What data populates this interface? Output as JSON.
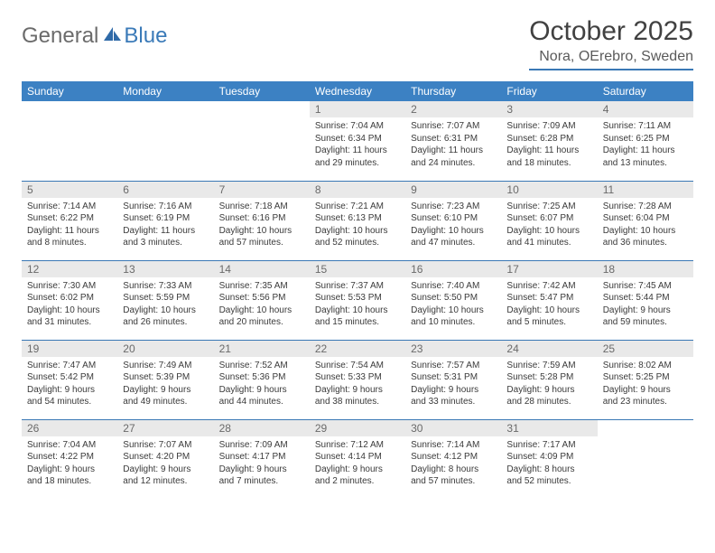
{
  "logo": {
    "general": "General",
    "blue": "Blue"
  },
  "title": "October 2025",
  "location": "Nora, OErebro, Sweden",
  "colors": {
    "header_bg": "#3c81c3",
    "header_text": "#ffffff",
    "rule": "#3a78b5",
    "daynum_bg": "#e9e9e9",
    "daynum_text": "#6a6a6a",
    "body_text": "#3a3a3a",
    "logo_gray": "#6b6b6b",
    "logo_blue": "#3a7ab8"
  },
  "weekdays": [
    "Sunday",
    "Monday",
    "Tuesday",
    "Wednesday",
    "Thursday",
    "Friday",
    "Saturday"
  ],
  "cells": [
    {
      "n": "",
      "sr": "",
      "ss": "",
      "dl": ""
    },
    {
      "n": "",
      "sr": "",
      "ss": "",
      "dl": ""
    },
    {
      "n": "",
      "sr": "",
      "ss": "",
      "dl": ""
    },
    {
      "n": "1",
      "sr": "Sunrise: 7:04 AM",
      "ss": "Sunset: 6:34 PM",
      "dl": "Daylight: 11 hours and 29 minutes."
    },
    {
      "n": "2",
      "sr": "Sunrise: 7:07 AM",
      "ss": "Sunset: 6:31 PM",
      "dl": "Daylight: 11 hours and 24 minutes."
    },
    {
      "n": "3",
      "sr": "Sunrise: 7:09 AM",
      "ss": "Sunset: 6:28 PM",
      "dl": "Daylight: 11 hours and 18 minutes."
    },
    {
      "n": "4",
      "sr": "Sunrise: 7:11 AM",
      "ss": "Sunset: 6:25 PM",
      "dl": "Daylight: 11 hours and 13 minutes."
    },
    {
      "n": "5",
      "sr": "Sunrise: 7:14 AM",
      "ss": "Sunset: 6:22 PM",
      "dl": "Daylight: 11 hours and 8 minutes."
    },
    {
      "n": "6",
      "sr": "Sunrise: 7:16 AM",
      "ss": "Sunset: 6:19 PM",
      "dl": "Daylight: 11 hours and 3 minutes."
    },
    {
      "n": "7",
      "sr": "Sunrise: 7:18 AM",
      "ss": "Sunset: 6:16 PM",
      "dl": "Daylight: 10 hours and 57 minutes."
    },
    {
      "n": "8",
      "sr": "Sunrise: 7:21 AM",
      "ss": "Sunset: 6:13 PM",
      "dl": "Daylight: 10 hours and 52 minutes."
    },
    {
      "n": "9",
      "sr": "Sunrise: 7:23 AM",
      "ss": "Sunset: 6:10 PM",
      "dl": "Daylight: 10 hours and 47 minutes."
    },
    {
      "n": "10",
      "sr": "Sunrise: 7:25 AM",
      "ss": "Sunset: 6:07 PM",
      "dl": "Daylight: 10 hours and 41 minutes."
    },
    {
      "n": "11",
      "sr": "Sunrise: 7:28 AM",
      "ss": "Sunset: 6:04 PM",
      "dl": "Daylight: 10 hours and 36 minutes."
    },
    {
      "n": "12",
      "sr": "Sunrise: 7:30 AM",
      "ss": "Sunset: 6:02 PM",
      "dl": "Daylight: 10 hours and 31 minutes."
    },
    {
      "n": "13",
      "sr": "Sunrise: 7:33 AM",
      "ss": "Sunset: 5:59 PM",
      "dl": "Daylight: 10 hours and 26 minutes."
    },
    {
      "n": "14",
      "sr": "Sunrise: 7:35 AM",
      "ss": "Sunset: 5:56 PM",
      "dl": "Daylight: 10 hours and 20 minutes."
    },
    {
      "n": "15",
      "sr": "Sunrise: 7:37 AM",
      "ss": "Sunset: 5:53 PM",
      "dl": "Daylight: 10 hours and 15 minutes."
    },
    {
      "n": "16",
      "sr": "Sunrise: 7:40 AM",
      "ss": "Sunset: 5:50 PM",
      "dl": "Daylight: 10 hours and 10 minutes."
    },
    {
      "n": "17",
      "sr": "Sunrise: 7:42 AM",
      "ss": "Sunset: 5:47 PM",
      "dl": "Daylight: 10 hours and 5 minutes."
    },
    {
      "n": "18",
      "sr": "Sunrise: 7:45 AM",
      "ss": "Sunset: 5:44 PM",
      "dl": "Daylight: 9 hours and 59 minutes."
    },
    {
      "n": "19",
      "sr": "Sunrise: 7:47 AM",
      "ss": "Sunset: 5:42 PM",
      "dl": "Daylight: 9 hours and 54 minutes."
    },
    {
      "n": "20",
      "sr": "Sunrise: 7:49 AM",
      "ss": "Sunset: 5:39 PM",
      "dl": "Daylight: 9 hours and 49 minutes."
    },
    {
      "n": "21",
      "sr": "Sunrise: 7:52 AM",
      "ss": "Sunset: 5:36 PM",
      "dl": "Daylight: 9 hours and 44 minutes."
    },
    {
      "n": "22",
      "sr": "Sunrise: 7:54 AM",
      "ss": "Sunset: 5:33 PM",
      "dl": "Daylight: 9 hours and 38 minutes."
    },
    {
      "n": "23",
      "sr": "Sunrise: 7:57 AM",
      "ss": "Sunset: 5:31 PM",
      "dl": "Daylight: 9 hours and 33 minutes."
    },
    {
      "n": "24",
      "sr": "Sunrise: 7:59 AM",
      "ss": "Sunset: 5:28 PM",
      "dl": "Daylight: 9 hours and 28 minutes."
    },
    {
      "n": "25",
      "sr": "Sunrise: 8:02 AM",
      "ss": "Sunset: 5:25 PM",
      "dl": "Daylight: 9 hours and 23 minutes."
    },
    {
      "n": "26",
      "sr": "Sunrise: 7:04 AM",
      "ss": "Sunset: 4:22 PM",
      "dl": "Daylight: 9 hours and 18 minutes."
    },
    {
      "n": "27",
      "sr": "Sunrise: 7:07 AM",
      "ss": "Sunset: 4:20 PM",
      "dl": "Daylight: 9 hours and 12 minutes."
    },
    {
      "n": "28",
      "sr": "Sunrise: 7:09 AM",
      "ss": "Sunset: 4:17 PM",
      "dl": "Daylight: 9 hours and 7 minutes."
    },
    {
      "n": "29",
      "sr": "Sunrise: 7:12 AM",
      "ss": "Sunset: 4:14 PM",
      "dl": "Daylight: 9 hours and 2 minutes."
    },
    {
      "n": "30",
      "sr": "Sunrise: 7:14 AM",
      "ss": "Sunset: 4:12 PM",
      "dl": "Daylight: 8 hours and 57 minutes."
    },
    {
      "n": "31",
      "sr": "Sunrise: 7:17 AM",
      "ss": "Sunset: 4:09 PM",
      "dl": "Daylight: 8 hours and 52 minutes."
    },
    {
      "n": "",
      "sr": "",
      "ss": "",
      "dl": ""
    }
  ]
}
